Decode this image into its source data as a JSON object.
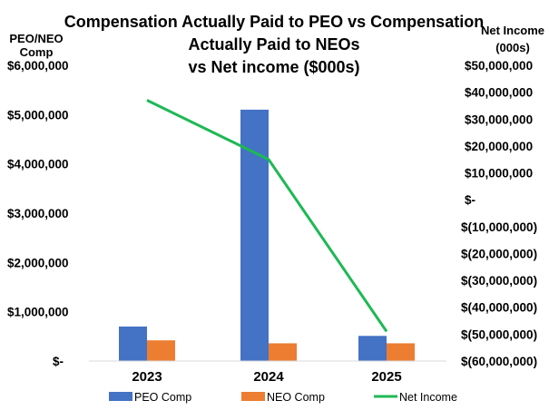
{
  "chart_data": {
    "type": "bar",
    "title_lines": [
      "Compensation Actually Paid to PEO vs Compensation",
      "Actually Paid to NEOs",
      "vs Net income ($000s)"
    ],
    "left_axis_label_lines": [
      "PEO/NEO",
      "Comp"
    ],
    "right_axis_label_lines": [
      "Net Income",
      "(000s)"
    ],
    "categories": [
      "2023",
      "2024",
      "2025"
    ],
    "left_ylim": [
      0,
      6000000
    ],
    "left_ticks": [
      0,
      1000000,
      2000000,
      3000000,
      4000000,
      5000000,
      6000000
    ],
    "left_tick_labels": [
      "$-",
      "$1,000,000",
      "$2,000,000",
      "$3,000,000",
      "$4,000,000",
      "$5,000,000",
      "$6,000,000"
    ],
    "right_ylim": [
      -60000000,
      50000000
    ],
    "right_ticks": [
      -60000000,
      -50000000,
      -40000000,
      -30000000,
      -20000000,
      -10000000,
      0,
      10000000,
      20000000,
      30000000,
      40000000,
      50000000
    ],
    "right_tick_labels": [
      "$(60,000,000)",
      "$(50,000,000)",
      "$(40,000,000)",
      "$(30,000,000)",
      "$(20,000,000)",
      "$(10,000,000)",
      "$-",
      "$10,000,000",
      "$20,000,000",
      "$30,000,000",
      "$40,000,000",
      "$50,000,000"
    ],
    "series": [
      {
        "name": "PEO Comp",
        "type": "bar",
        "axis": "left",
        "color": "#4472C4",
        "values": [
          700000,
          5100000,
          510000
        ]
      },
      {
        "name": "NEO Comp",
        "type": "bar",
        "axis": "left",
        "color": "#ED7D31",
        "values": [
          420000,
          360000,
          360000
        ]
      },
      {
        "name": "Net Income",
        "type": "line",
        "axis": "right",
        "color": "#1DB954",
        "values": [
          37000000,
          15000000,
          -49000000
        ]
      }
    ],
    "grid": false,
    "legend_position": "bottom"
  }
}
